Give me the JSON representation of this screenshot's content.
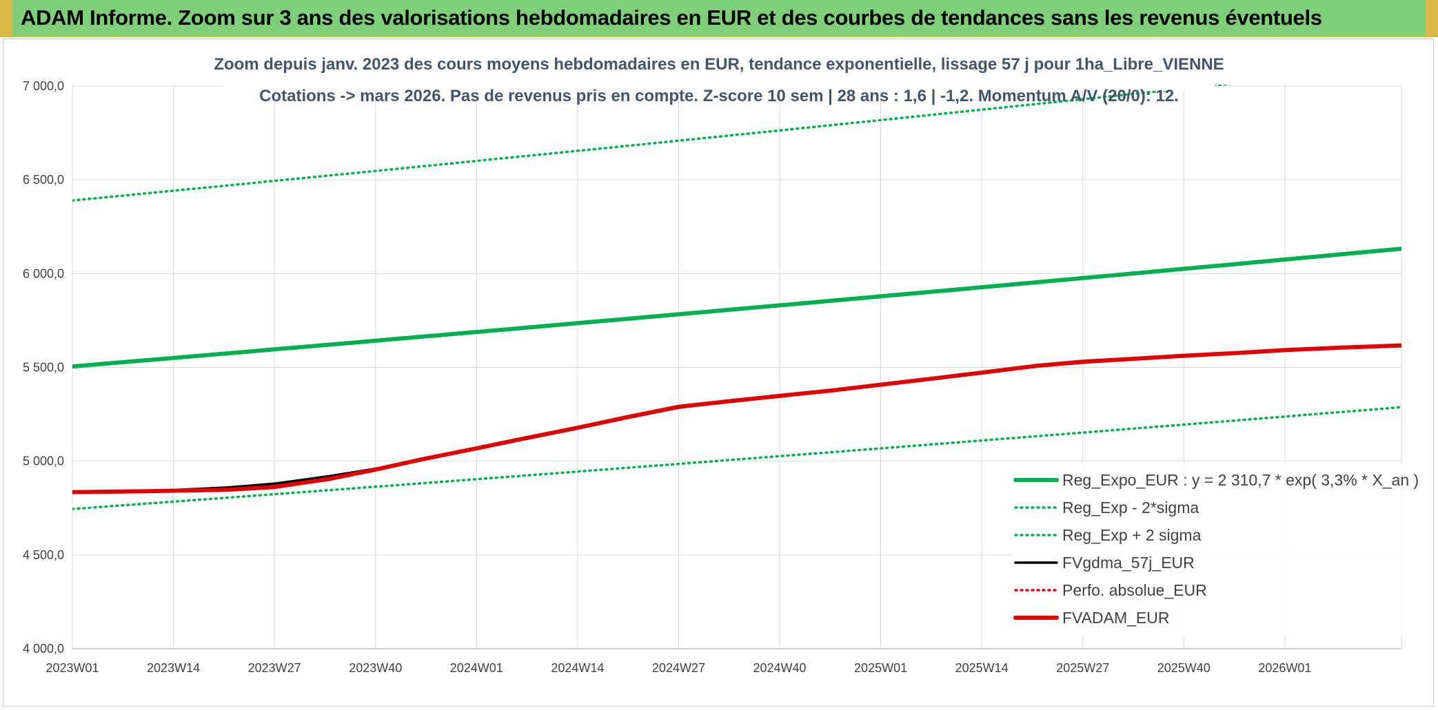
{
  "banner": {
    "title": "ADAM Informe. Zoom sur 3 ans des valorisations hebdomadaires en EUR et des courbes de tendances sans les revenus éventuels"
  },
  "colors": {
    "banner_bg": "#7fcf7a",
    "green": "#00b050",
    "red": "#e00000",
    "black": "#000000",
    "grid": "#d9d9d9"
  },
  "chart_data": {
    "type": "line",
    "title_lines": [
      "Zoom depuis janv. 2023 des cours moyens hebdomadaires en EUR, tendance exponentielle, lissage 57 j pour 1ha_Libre_VIENNE",
      "Cotations -> mars 2026. Pas de revenus pris en compte. Z-score 10 sem | 28 ans : 1,6 | -1,2. Momentum A/V (20/0): 12."
    ],
    "ylim": [
      4000,
      7000
    ],
    "y_ticks": [
      "4 000,0",
      "4 500,0",
      "5 000,0",
      "5 500,0",
      "6 000,0",
      "6 500,0",
      "7 000,0"
    ],
    "x_ticks": [
      "2023W01",
      "2023W14",
      "2023W27",
      "2023W40",
      "2024W01",
      "2024W14",
      "2024W27",
      "2024W40",
      "2025W01",
      "2025W14",
      "2025W27",
      "2025W40",
      "2026W01"
    ],
    "x_tick_week_index": [
      0,
      13,
      26,
      39,
      52,
      65,
      78,
      91,
      104,
      117,
      130,
      143,
      156
    ],
    "x_range_weeks": [
      0,
      171
    ],
    "legend_position": "bottom-right",
    "grid": true,
    "series": [
      {
        "name": "Reg_Expo_EUR : y = 2 310,7 * exp( 3,3% *  X_an )",
        "style": "solid-thick",
        "color": "#00b050",
        "x": [
          0,
          171
        ],
        "y": [
          5505,
          6133
        ],
        "curve": "exp"
      },
      {
        "name": "Reg_Exp - 2*sigma",
        "style": "dotted",
        "color": "#00b050",
        "x": [
          0,
          171
        ],
        "y": [
          4745,
          5288
        ],
        "curve": "exp"
      },
      {
        "name": "Reg_Exp + 2 sigma",
        "style": "dotted",
        "color": "#00b050",
        "x": [
          0,
          171
        ],
        "y": [
          6390,
          7110
        ],
        "curve": "exp"
      },
      {
        "name": "FVgdma_57j_EUR",
        "style": "solid",
        "color": "#000000",
        "x": [
          0,
          10,
          20,
          26,
          33,
          39,
          45,
          52,
          58,
          65,
          72,
          78,
          85,
          91,
          98,
          104,
          111,
          117,
          124,
          130,
          137,
          143,
          150,
          156,
          163,
          171
        ],
        "y": [
          4835,
          4840,
          4860,
          4880,
          4920,
          4960,
          5010,
          5065,
          5115,
          5175,
          5235,
          5285,
          5320,
          5345,
          5375,
          5405,
          5440,
          5470,
          5505,
          5525,
          5545,
          5560,
          5575,
          5590,
          5603,
          5615
        ]
      },
      {
        "name": "Perfo. absolue_EUR",
        "style": "dotted",
        "color": "#e00000",
        "x": [
          0,
          10,
          20,
          26,
          33,
          39,
          45,
          52,
          58,
          65,
          72,
          78,
          85,
          91,
          98,
          104,
          111,
          117,
          124,
          130,
          137,
          143,
          150,
          156,
          163,
          171
        ],
        "y": [
          4835,
          4840,
          4848,
          4862,
          4905,
          4955,
          5010,
          5068,
          5120,
          5178,
          5240,
          5290,
          5322,
          5348,
          5378,
          5408,
          5442,
          5472,
          5508,
          5530,
          5547,
          5562,
          5577,
          5592,
          5605,
          5617
        ]
      },
      {
        "name": "FVADAM_EUR",
        "style": "solid-thick",
        "color": "#e00000",
        "x": [
          0,
          10,
          20,
          26,
          33,
          39,
          45,
          52,
          58,
          65,
          72,
          78,
          85,
          91,
          98,
          104,
          111,
          117,
          124,
          130,
          137,
          143,
          150,
          156,
          163,
          171
        ],
        "y": [
          4835,
          4840,
          4848,
          4862,
          4905,
          4955,
          5010,
          5068,
          5120,
          5178,
          5240,
          5290,
          5322,
          5348,
          5378,
          5408,
          5442,
          5472,
          5508,
          5530,
          5547,
          5562,
          5577,
          5592,
          5605,
          5617
        ]
      }
    ]
  }
}
